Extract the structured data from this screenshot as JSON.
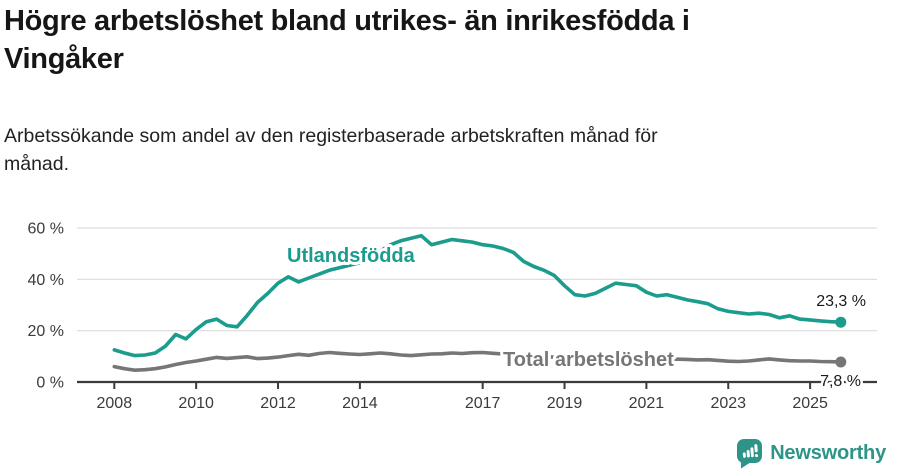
{
  "title": {
    "line1": "Högre arbetslöshet bland utrikes- än inrikesfödda i",
    "line2": "Vingåker"
  },
  "subtitle": {
    "line1": "Arbetssökande som andel av den registerbaserade arbetskraften månad för",
    "line2": "månad."
  },
  "colors": {
    "accent_teal": "#1b9c8d",
    "series_gray": "#767676",
    "grid": "#dcdcdc",
    "axis": "#3b3b3b",
    "text_dark": "#1a1a1a",
    "brand_teal": "#2e9488"
  },
  "branding": {
    "name": "Newsworthy",
    "icon": "newsworthy-speech-bubble-bar-chart-icon"
  },
  "chart_data": {
    "type": "line",
    "title": "Högre arbetslöshet bland utrikes- än inrikesfödda i Vingåker",
    "subtitle": "Arbetssökande som andel av den registerbaserade arbetskraften månad för månad.",
    "xlabel": "",
    "ylabel": "",
    "grid": "horizontal",
    "legend_position": "inline-labels",
    "xlim": [
      2007.1,
      2026.6
    ],
    "ylim": [
      0,
      62
    ],
    "x_ticks": [
      2008,
      2010,
      2012,
      2014,
      2017,
      2019,
      2021,
      2023,
      2025
    ],
    "x_tick_labels": [
      "2008",
      "2010",
      "2012",
      "2014",
      "2017",
      "2019",
      "2021",
      "2023",
      "2025"
    ],
    "y_ticks": [
      60,
      40,
      20,
      0
    ],
    "y_tick_labels": [
      "60 %",
      "40 %",
      "20 %",
      "0 %"
    ],
    "x": [
      2008,
      2008.25,
      2008.5,
      2008.75,
      2009,
      2009.25,
      2009.5,
      2009.75,
      2010,
      2010.25,
      2010.5,
      2010.75,
      2011,
      2011.25,
      2011.5,
      2011.75,
      2012,
      2012.25,
      2012.5,
      2012.75,
      2013,
      2013.25,
      2013.5,
      2013.75,
      2014,
      2014.25,
      2014.5,
      2014.75,
      2015,
      2015.25,
      2015.5,
      2015.75,
      2016,
      2016.25,
      2016.5,
      2016.75,
      2017,
      2017.25,
      2017.5,
      2017.75,
      2018,
      2018.25,
      2018.5,
      2018.75,
      2019,
      2019.25,
      2019.5,
      2019.75,
      2020,
      2020.25,
      2020.5,
      2020.75,
      2021,
      2021.25,
      2021.5,
      2021.75,
      2022,
      2022.25,
      2022.5,
      2022.75,
      2023,
      2023.25,
      2023.5,
      2023.75,
      2024,
      2024.25,
      2024.5,
      2024.75,
      2025,
      2025.25,
      2025.5,
      2025.75
    ],
    "series": [
      {
        "name": "Utlandsfödda",
        "color": "#1b9c8d",
        "end_label": "23,3 %",
        "end_value": 23.3,
        "values": [
          12.5,
          11.3,
          10.3,
          10.5,
          11.3,
          14.0,
          18.5,
          16.8,
          20.5,
          23.5,
          24.5,
          22.0,
          21.5,
          26.0,
          31.0,
          34.5,
          38.5,
          41.0,
          39.0,
          40.5,
          42.0,
          43.5,
          44.5,
          45.5,
          46.5,
          48.5,
          51.0,
          53.5,
          55.0,
          56.0,
          57.0,
          53.5,
          54.5,
          55.5,
          55.0,
          54.5,
          53.5,
          53.0,
          52.0,
          50.5,
          47.0,
          45.0,
          43.5,
          41.5,
          37.5,
          34.0,
          33.5,
          34.5,
          36.5,
          38.5,
          38.0,
          37.5,
          35.0,
          33.5,
          34.0,
          33.0,
          32.0,
          31.3,
          30.5,
          28.5,
          27.5,
          27.0,
          26.5,
          26.8,
          26.3,
          25.0,
          25.8,
          24.5,
          24.2,
          23.8,
          23.5,
          23.3
        ]
      },
      {
        "name": "Total arbetslöshet",
        "color": "#767676",
        "end_label": "7,8 %",
        "end_value": 7.8,
        "values": [
          6.0,
          5.2,
          4.6,
          4.8,
          5.2,
          5.9,
          6.8,
          7.6,
          8.2,
          8.9,
          9.6,
          9.2,
          9.5,
          9.8,
          9.1,
          9.3,
          9.7,
          10.3,
          10.8,
          10.4,
          11.1,
          11.5,
          11.2,
          10.9,
          10.7,
          11.0,
          11.3,
          11.0,
          10.5,
          10.3,
          10.6,
          10.9,
          11.0,
          11.3,
          11.1,
          11.4,
          11.5,
          11.2,
          10.9,
          10.6,
          10.3,
          10.0,
          9.8,
          9.7,
          9.5,
          9.3,
          9.2,
          9.5,
          9.9,
          10.6,
          10.3,
          10.0,
          9.7,
          9.3,
          9.0,
          8.9,
          8.8,
          8.6,
          8.7,
          8.4,
          8.1,
          8.0,
          8.2,
          8.6,
          9.0,
          8.6,
          8.3,
          8.2,
          8.2,
          8.0,
          7.9,
          7.8
        ]
      }
    ]
  }
}
